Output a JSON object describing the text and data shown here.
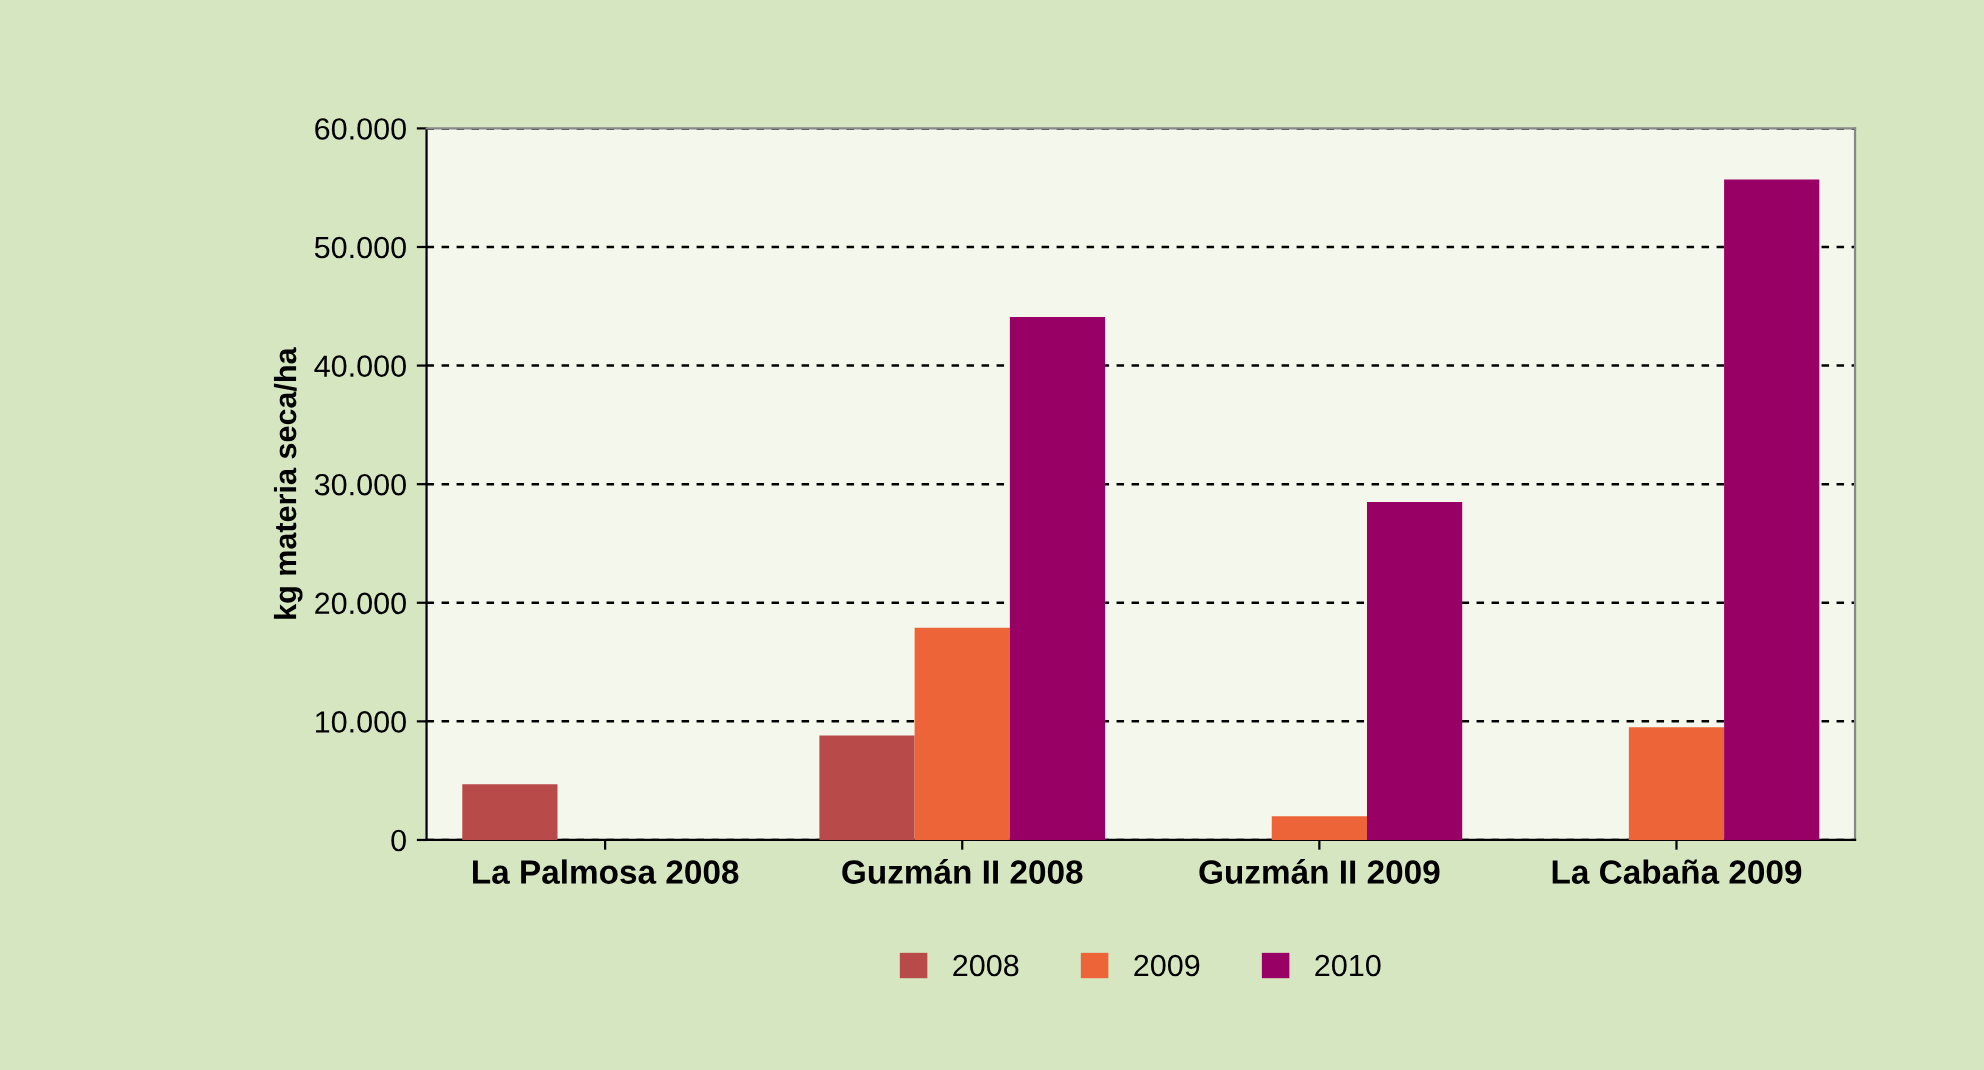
{
  "chart_data": {
    "type": "bar",
    "ylabel": "kg materia seca/ha",
    "categories": [
      "La Palmosa 2008",
      "Guzmán II 2008",
      "Guzmán II 2009",
      "La Cabaña 2009"
    ],
    "series": [
      {
        "name": "2008",
        "color": "#b94a4a",
        "values": [
          4700,
          8800,
          null,
          null
        ]
      },
      {
        "name": "2009",
        "color": "#ec6437",
        "values": [
          null,
          17900,
          2000,
          9500
        ]
      },
      {
        "name": "2010",
        "color": "#990066",
        "values": [
          null,
          44100,
          28500,
          55700
        ]
      }
    ],
    "ylim": [
      0,
      60000
    ],
    "yticks": [
      {
        "value": 0,
        "label": "0"
      },
      {
        "value": 10000,
        "label": "10.000"
      },
      {
        "value": 20000,
        "label": "20.000"
      },
      {
        "value": 30000,
        "label": "30.000"
      },
      {
        "value": 40000,
        "label": "40.000"
      },
      {
        "value": 50000,
        "label": "50.000"
      },
      {
        "value": 60000,
        "label": "60.000"
      }
    ],
    "grid": "y",
    "legend": "bottom"
  }
}
